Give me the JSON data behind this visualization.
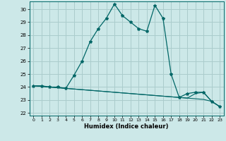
{
  "title": "",
  "xlabel": "Humidex (Indice chaleur)",
  "ylabel": "",
  "background_color": "#cce8e8",
  "grid_color": "#aacccc",
  "line_color": "#006666",
  "xlim": [
    -0.5,
    23.5
  ],
  "ylim": [
    21.8,
    30.6
  ],
  "yticks": [
    22,
    23,
    24,
    25,
    26,
    27,
    28,
    29,
    30
  ],
  "xticks": [
    0,
    1,
    2,
    3,
    4,
    5,
    6,
    7,
    8,
    9,
    10,
    11,
    12,
    13,
    14,
    15,
    16,
    17,
    18,
    19,
    20,
    21,
    22,
    23
  ],
  "line1_x": [
    0,
    1,
    2,
    3,
    4,
    5,
    6,
    7,
    8,
    9,
    10,
    11,
    12,
    13,
    14,
    15,
    16,
    17,
    18,
    19,
    20,
    21,
    22,
    23
  ],
  "line1_y": [
    24.1,
    24.1,
    24.0,
    24.0,
    23.9,
    24.9,
    26.0,
    27.5,
    28.5,
    29.3,
    30.4,
    29.5,
    29.0,
    28.5,
    28.3,
    30.3,
    29.3,
    25.0,
    23.2,
    23.5,
    23.6,
    23.6,
    22.9,
    22.5
  ],
  "line2_x": [
    0,
    1,
    2,
    3,
    4,
    5,
    6,
    7,
    8,
    9,
    10,
    11,
    12,
    13,
    14,
    15,
    16,
    17,
    18,
    19,
    20,
    21,
    22,
    23
  ],
  "line2_y": [
    24.1,
    24.05,
    24.0,
    23.95,
    23.9,
    23.85,
    23.8,
    23.75,
    23.7,
    23.65,
    23.6,
    23.55,
    23.5,
    23.45,
    23.4,
    23.35,
    23.3,
    23.25,
    23.2,
    23.15,
    23.5,
    23.6,
    22.9,
    22.5
  ],
  "line3_x": [
    0,
    1,
    2,
    3,
    4,
    5,
    6,
    7,
    8,
    9,
    10,
    11,
    12,
    13,
    14,
    15,
    16,
    17,
    18,
    19,
    20,
    21,
    22,
    23
  ],
  "line3_y": [
    24.1,
    24.05,
    24.0,
    23.95,
    23.9,
    23.85,
    23.8,
    23.75,
    23.7,
    23.65,
    23.6,
    23.55,
    23.5,
    23.45,
    23.4,
    23.35,
    23.3,
    23.25,
    23.2,
    23.15,
    23.1,
    23.05,
    22.9,
    22.5
  ]
}
